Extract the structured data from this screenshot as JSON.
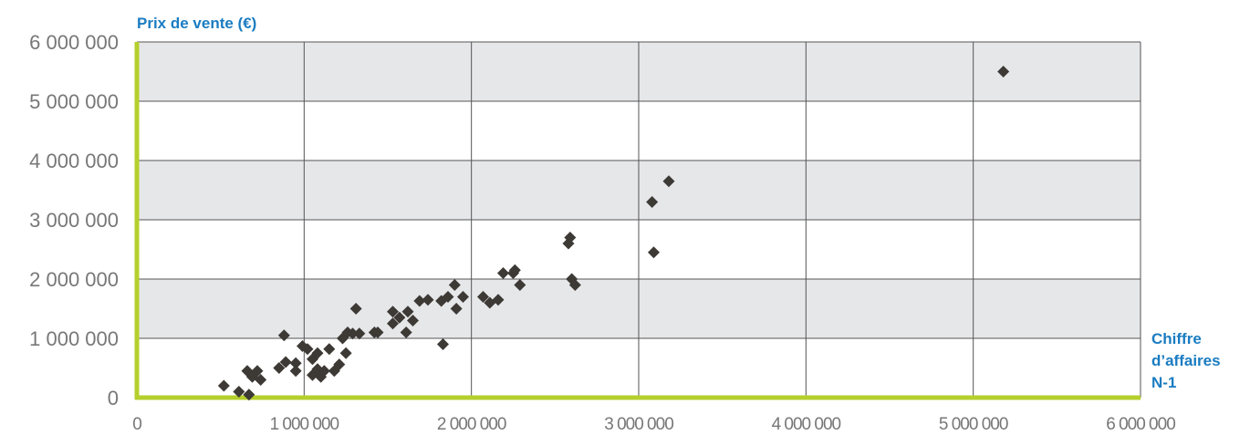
{
  "chart_data": {
    "type": "scatter",
    "ylabel": "Prix de vente (€)",
    "xlabel_lines": [
      "Chiffre",
      "d’affaires",
      "N-1"
    ],
    "xlim": [
      0,
      6000000
    ],
    "ylim": [
      0,
      6000000
    ],
    "x_ticks": [
      0,
      1000000,
      2000000,
      3000000,
      4000000,
      5000000,
      6000000
    ],
    "x_tick_labels": [
      "0",
      "1 000 000",
      "2 000 000",
      "3 000 000",
      "4 000 000",
      "5 000 000",
      "6 000 000"
    ],
    "y_ticks": [
      0,
      1000000,
      2000000,
      3000000,
      4000000,
      5000000,
      6000000
    ],
    "y_tick_labels": [
      "0",
      "1 000 000",
      "2 000 000",
      "3 000 000",
      "4 000 000",
      "5 000 000",
      "6 000 000"
    ],
    "grid": true,
    "colors": {
      "marker": "#3d3935",
      "axis": "#b5cf2c",
      "band": "#e6e7e9",
      "grid": "#555555",
      "title": "#1a7cc1",
      "tick": "#777777"
    },
    "points": [
      [
        520000,
        200000
      ],
      [
        610000,
        100000
      ],
      [
        660000,
        450000
      ],
      [
        670000,
        50000
      ],
      [
        690000,
        350000
      ],
      [
        720000,
        450000
      ],
      [
        740000,
        300000
      ],
      [
        850000,
        500000
      ],
      [
        880000,
        1050000
      ],
      [
        890000,
        600000
      ],
      [
        950000,
        580000
      ],
      [
        950000,
        450000
      ],
      [
        990000,
        870000
      ],
      [
        1020000,
        820000
      ],
      [
        1050000,
        650000
      ],
      [
        1050000,
        380000
      ],
      [
        1080000,
        750000
      ],
      [
        1080000,
        480000
      ],
      [
        1100000,
        350000
      ],
      [
        1120000,
        450000
      ],
      [
        1150000,
        820000
      ],
      [
        1180000,
        450000
      ],
      [
        1210000,
        560000
      ],
      [
        1230000,
        1000000
      ],
      [
        1250000,
        750000
      ],
      [
        1260000,
        1100000
      ],
      [
        1290000,
        1080000
      ],
      [
        1310000,
        1500000
      ],
      [
        1330000,
        1080000
      ],
      [
        1420000,
        1100000
      ],
      [
        1440000,
        1100000
      ],
      [
        1530000,
        1450000
      ],
      [
        1530000,
        1250000
      ],
      [
        1570000,
        1350000
      ],
      [
        1610000,
        1100000
      ],
      [
        1620000,
        1450000
      ],
      [
        1650000,
        1300000
      ],
      [
        1690000,
        1630000
      ],
      [
        1740000,
        1650000
      ],
      [
        1820000,
        1630000
      ],
      [
        1830000,
        900000
      ],
      [
        1860000,
        1700000
      ],
      [
        1900000,
        1900000
      ],
      [
        1910000,
        1500000
      ],
      [
        1950000,
        1700000
      ],
      [
        2070000,
        1700000
      ],
      [
        2110000,
        1600000
      ],
      [
        2160000,
        1650000
      ],
      [
        2190000,
        2100000
      ],
      [
        2250000,
        2100000
      ],
      [
        2260000,
        2150000
      ],
      [
        2290000,
        1900000
      ],
      [
        2580000,
        2600000
      ],
      [
        2590000,
        2700000
      ],
      [
        2600000,
        2000000
      ],
      [
        2620000,
        1900000
      ],
      [
        3080000,
        3300000
      ],
      [
        3090000,
        2450000
      ],
      [
        3180000,
        3650000
      ],
      [
        5180000,
        5500000
      ]
    ]
  }
}
